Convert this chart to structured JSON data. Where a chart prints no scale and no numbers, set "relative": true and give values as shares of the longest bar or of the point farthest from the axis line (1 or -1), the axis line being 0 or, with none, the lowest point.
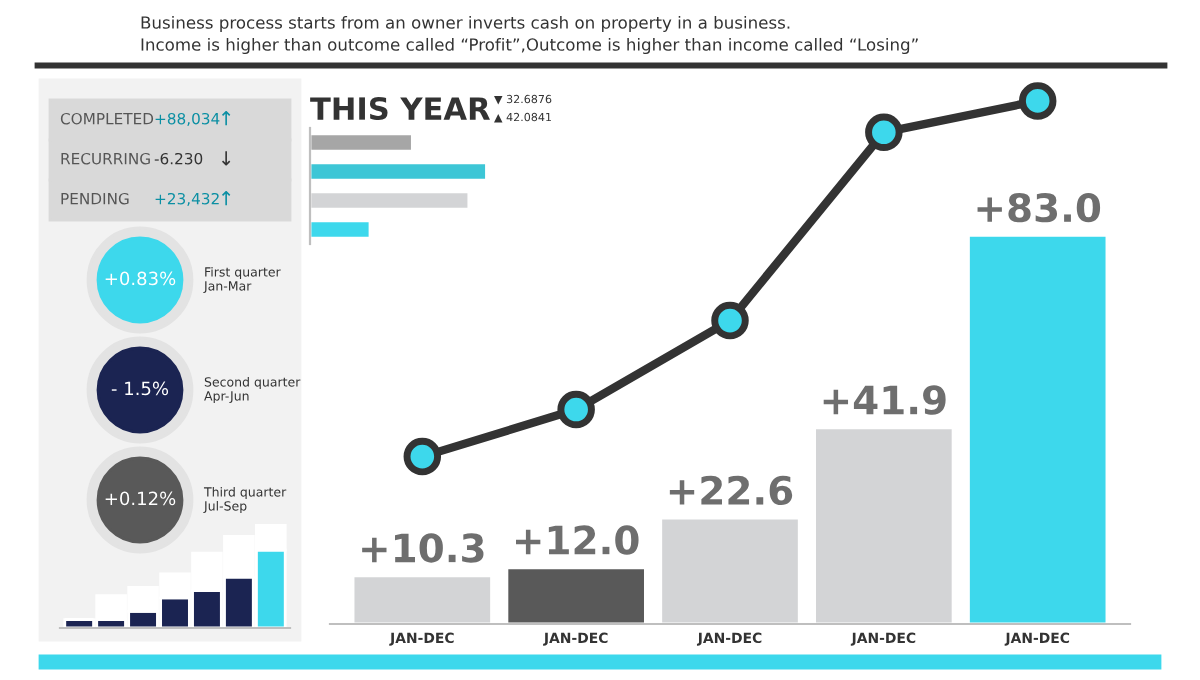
{
  "chart_data": [
    {
      "type": "bar",
      "title": "Business process starts from an owner inverts cash on property in a business.",
      "subtitle": "Income is higher than outcome called “Profit”,Outcome is higher than income called “Losing”",
      "categories": [
        "JAN-DEC",
        "JAN-DEC",
        "JAN-DEC",
        "JAN-DEC",
        "JAN-DEC"
      ],
      "grid": false,
      "colors": [
        "#d3d4d6",
        "#595959",
        "#d3d4d6",
        "#d3d4d6",
        "#3dd8ec"
      ],
      "values": [
        10.3,
        12.0,
        22.6,
        41.9,
        83.0
      ],
      "value_labels": [
        "+10.3",
        "+12.0",
        "+22.6",
        "+41.9",
        "+83.0"
      ]
    },
    {
      "type": "line",
      "relative": true,
      "categories": [
        null,
        null,
        null,
        null,
        null
      ],
      "marker": "circle",
      "line_style": "solid",
      "series": [
        {
          "color": "#333333",
          "values": [
            0.32,
            0.41,
            0.58,
            0.94,
            1.0
          ]
        }
      ]
    },
    {
      "type": "other",
      "annotations": [
        "COMPLETED",
        "+88,034",
        "↑",
        "RECURRING",
        "-6.230",
        "↓",
        "PENDING",
        "+23,432",
        "↑",
        "+0.83%",
        "First quarter\nJan-Mar",
        "- 1.5%",
        "Second quarter\nApr-Jun",
        "+0.12%",
        "Third quarter\nJul-Sep"
      ]
    },
    {
      "type": "bar",
      "relative": true,
      "stacked": true,
      "categories": [
        null,
        null,
        null,
        null,
        null,
        null,
        null
      ],
      "series": [
        {
          "colors": [
            "#1b2452",
            "#1b2452",
            "#1b2452",
            "#1b2452",
            "#1b2452",
            "#1b2452",
            "#3dd8ec"
          ],
          "values": [
            0.08,
            0.08,
            0.16,
            0.29,
            0.36,
            0.49,
            0.75
          ]
        },
        {
          "color": "#ffffff",
          "values": [
            0,
            0.23,
            0.23,
            0.23,
            0.36,
            0.39,
            0.25
          ]
        }
      ]
    },
    {
      "type": "bar",
      "title": "THIS YEAR",
      "orientation": "horizontal",
      "relative": true,
      "categories": [
        null,
        null,
        null,
        null
      ],
      "colors": [
        "#a6a6a6",
        "#3dc6d6",
        "#d3d4d6",
        "#3dd8ec"
      ],
      "values": [
        0.58,
        1.0,
        0.9,
        0.34
      ],
      "annotations": [
        "▼ 32.6876",
        "▲ 42.0841"
      ]
    }
  ]
}
